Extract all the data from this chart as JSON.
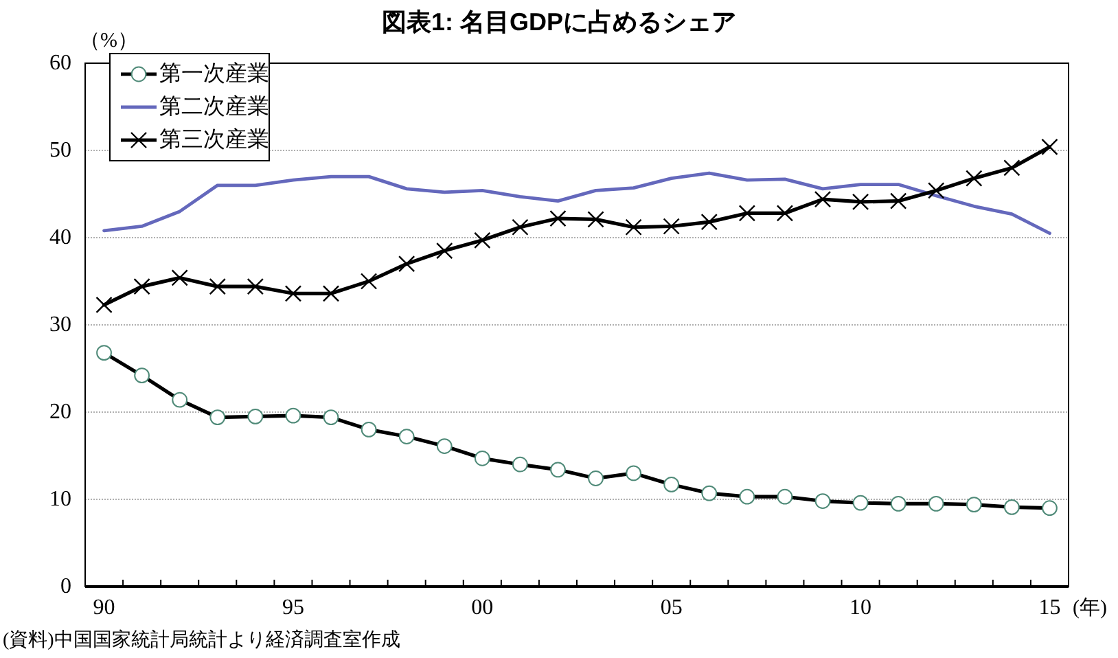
{
  "chart_data": {
    "type": "line",
    "title": "図表1: 名目GDPに占めるシェア",
    "ylabel": "（%）",
    "xlabel": "(年)",
    "annotations": [
      "(資料)中国国家統計局統計より経済調査室作成"
    ],
    "categories": [
      "90",
      null,
      null,
      null,
      null,
      "95",
      null,
      null,
      null,
      null,
      "00",
      null,
      null,
      null,
      null,
      "05",
      null,
      null,
      null,
      null,
      "10",
      null,
      null,
      null,
      null,
      "15"
    ],
    "series": [
      {
        "name": "第一次産業",
        "color": "#000000",
        "marker": "circle",
        "values": [
          26.8,
          24.2,
          21.4,
          19.4,
          19.5,
          19.6,
          19.4,
          18.0,
          17.2,
          16.1,
          14.7,
          14.0,
          13.4,
          12.4,
          13.0,
          11.7,
          10.7,
          10.3,
          10.3,
          9.8,
          9.6,
          9.5,
          9.5,
          9.4,
          9.1,
          9.0
        ]
      },
      {
        "name": "第二次産業",
        "color": "#6468bc",
        "marker": "none",
        "values": [
          40.8,
          41.3,
          43.0,
          46.0,
          46.0,
          46.6,
          47.0,
          47.0,
          45.6,
          45.2,
          45.4,
          44.7,
          44.2,
          45.4,
          45.7,
          46.8,
          47.4,
          46.6,
          46.7,
          45.6,
          46.1,
          46.1,
          44.8,
          43.6,
          42.7,
          40.5
        ]
      },
      {
        "name": "第三次産業",
        "color": "#000000",
        "marker": "cross",
        "values": [
          32.3,
          34.4,
          35.4,
          34.4,
          34.4,
          33.6,
          33.6,
          35.0,
          37.0,
          38.5,
          39.7,
          41.2,
          42.2,
          42.1,
          41.2,
          41.3,
          41.8,
          42.8,
          42.8,
          44.4,
          44.1,
          44.2,
          45.4,
          46.8,
          48.0,
          50.4
        ]
      }
    ],
    "ylim": [
      0,
      60
    ],
    "yticks": [
      0,
      10,
      20,
      30,
      40,
      50,
      60
    ],
    "grid": "y",
    "legend": "top left"
  }
}
